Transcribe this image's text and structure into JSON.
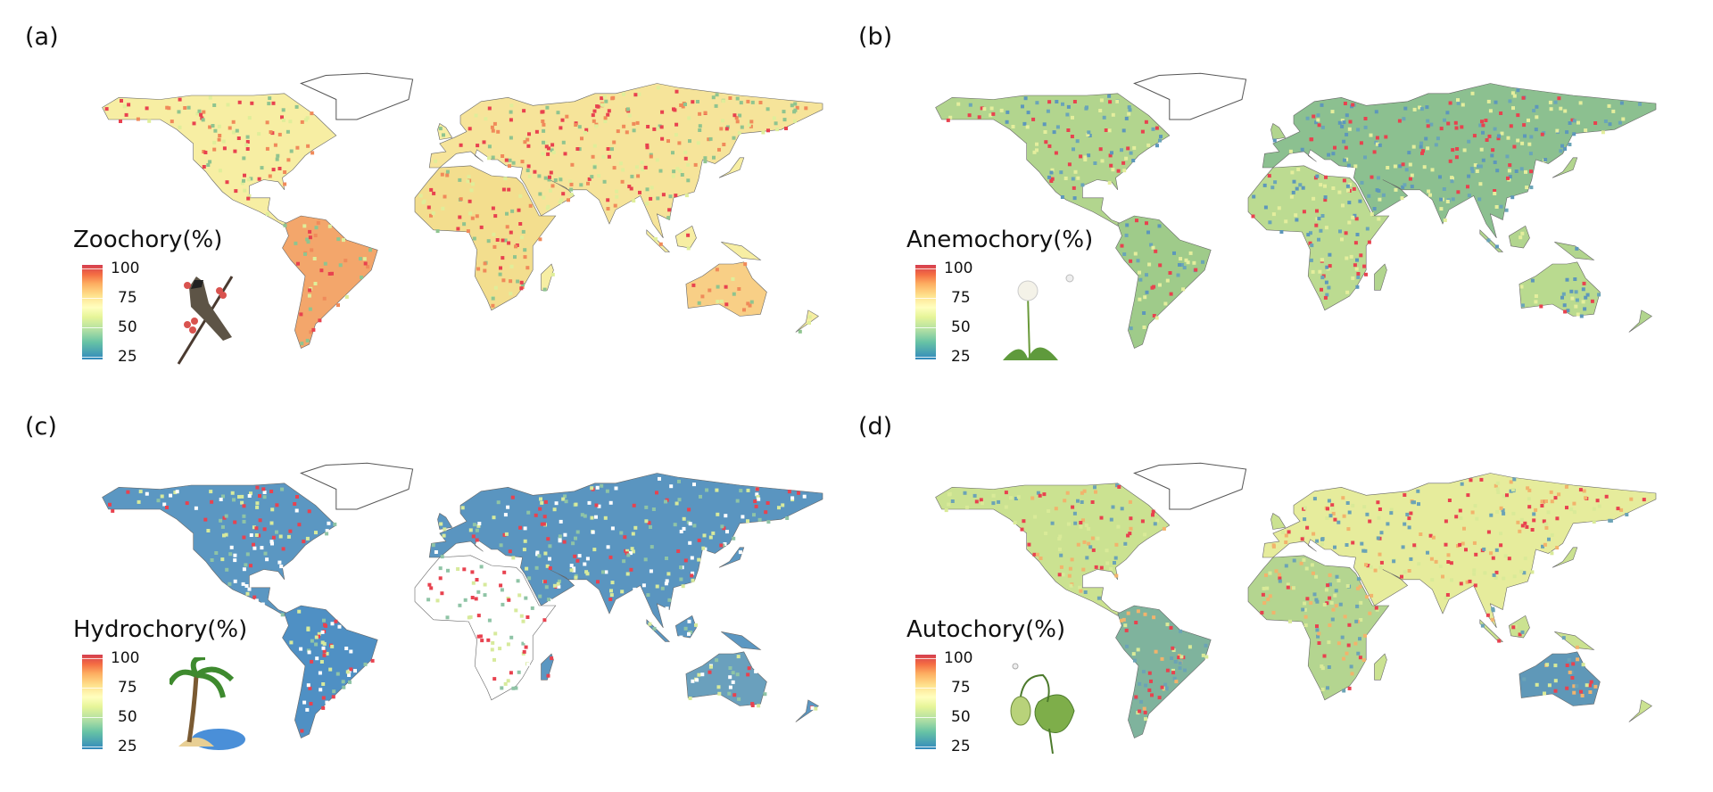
{
  "panels": [
    {
      "label": "(a)",
      "legend_title": "Zoochory(%)",
      "icon": "bird-with-berries-icon",
      "colors": {
        "base": "#f7eea3",
        "south_america": "#f3a66b",
        "australia": "#f8cf86",
        "asia": "#f6e49a",
        "africa": "#f3de8e",
        "speckle": [
          "#e8424f",
          "#f08a5a",
          "#dfee9a",
          "#8fc48f"
        ]
      }
    },
    {
      "label": "(b)",
      "legend_title": "Anemochory(%)",
      "icon": "dandelion-icon",
      "colors": {
        "base": "#b2d58e",
        "south_america": "#9fcb8a",
        "australia": "#b9da8f",
        "asia": "#8cc090",
        "africa": "#bcdb91",
        "speckle": [
          "#e8424f",
          "#6aa5b8",
          "#e4ee9d",
          "#5d97bb"
        ]
      }
    },
    {
      "label": "(c)",
      "legend_title": "Hydrochory(%)",
      "icon": "palm-island-icon",
      "colors": {
        "base": "#5b97c2",
        "south_america": "#4f90c4",
        "australia": "#6aa0bd",
        "asia": "#5a95c0",
        "africa": "#ffffff",
        "speckle": [
          "#ffffff",
          "#8fc4a6",
          "#e8424f",
          "#d7ea9c"
        ]
      }
    },
    {
      "label": "(d)",
      "legend_title": "Autochory(%)",
      "icon": "seed-pod-plant-icon",
      "colors": {
        "base": "#cbe291",
        "south_america": "#7fb39d",
        "australia": "#5f98b8",
        "asia": "#e6ec9c",
        "africa": "#b4d590",
        "speckle": [
          "#e8424f",
          "#f2b36c",
          "#6ba3b6",
          "#d9ea98"
        ]
      }
    }
  ],
  "legend": {
    "ticks": [
      "100",
      "75",
      "50",
      "25"
    ],
    "scale": "Spectral (blue 0 → red 100)"
  }
}
